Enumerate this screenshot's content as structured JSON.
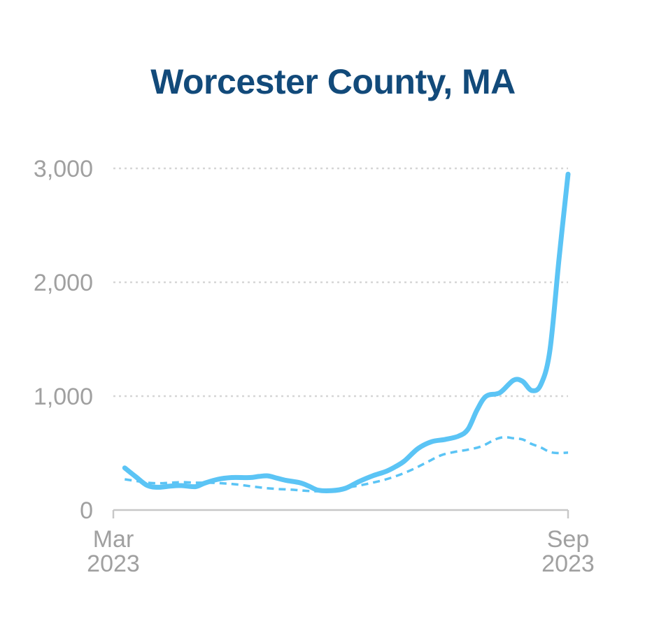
{
  "chart_data": {
    "type": "line",
    "title": "Worcester County, MA",
    "xlabel": "",
    "ylabel": "",
    "x_range": [
      "2023-03",
      "2023-09"
    ],
    "ylim": [
      0,
      3000
    ],
    "grid": true,
    "legend": "none",
    "y_ticks": [
      {
        "value": 0,
        "label": "0"
      },
      {
        "value": 1000,
        "label": "1,000"
      },
      {
        "value": 2000,
        "label": "2,000"
      },
      {
        "value": 3000,
        "label": "3,000"
      }
    ],
    "x_ticks": [
      {
        "x": 0.0,
        "line1": "Mar",
        "line2": "2023"
      },
      {
        "x": 1.0,
        "line1": "Sep",
        "line2": "2023"
      }
    ],
    "colors": {
      "title": "#124a7a",
      "series": "#5bc4f5",
      "grid": "#d6d6d6",
      "axis": "#c8c8c8",
      "tick_text": "#a0a0a0"
    },
    "series": [
      {
        "style": "solid",
        "points": [
          [
            0.025,
            370
          ],
          [
            0.05,
            290
          ],
          [
            0.075,
            215
          ],
          [
            0.1,
            200
          ],
          [
            0.125,
            210
          ],
          [
            0.15,
            215
          ],
          [
            0.18,
            205
          ],
          [
            0.2,
            235
          ],
          [
            0.23,
            270
          ],
          [
            0.26,
            285
          ],
          [
            0.3,
            285
          ],
          [
            0.32,
            295
          ],
          [
            0.34,
            300
          ],
          [
            0.36,
            280
          ],
          [
            0.38,
            260
          ],
          [
            0.41,
            240
          ],
          [
            0.43,
            210
          ],
          [
            0.45,
            175
          ],
          [
            0.48,
            170
          ],
          [
            0.51,
            190
          ],
          [
            0.54,
            250
          ],
          [
            0.57,
            300
          ],
          [
            0.6,
            340
          ],
          [
            0.62,
            380
          ],
          [
            0.64,
            430
          ],
          [
            0.67,
            540
          ],
          [
            0.7,
            600
          ],
          [
            0.73,
            620
          ],
          [
            0.76,
            650
          ],
          [
            0.78,
            710
          ],
          [
            0.8,
            880
          ],
          [
            0.82,
            1000
          ],
          [
            0.85,
            1030
          ],
          [
            0.88,
            1140
          ],
          [
            0.9,
            1130
          ],
          [
            0.92,
            1050
          ],
          [
            0.94,
            1100
          ],
          [
            0.96,
            1400
          ],
          [
            0.98,
            2200
          ],
          [
            1.0,
            2950
          ]
        ]
      },
      {
        "style": "dashed",
        "points": [
          [
            0.025,
            270
          ],
          [
            0.05,
            255
          ],
          [
            0.075,
            240
          ],
          [
            0.1,
            235
          ],
          [
            0.125,
            240
          ],
          [
            0.15,
            245
          ],
          [
            0.18,
            240
          ],
          [
            0.21,
            240
          ],
          [
            0.24,
            235
          ],
          [
            0.27,
            225
          ],
          [
            0.3,
            210
          ],
          [
            0.33,
            195
          ],
          [
            0.36,
            185
          ],
          [
            0.39,
            180
          ],
          [
            0.42,
            170
          ],
          [
            0.45,
            165
          ],
          [
            0.48,
            175
          ],
          [
            0.51,
            195
          ],
          [
            0.54,
            215
          ],
          [
            0.57,
            240
          ],
          [
            0.6,
            270
          ],
          [
            0.63,
            310
          ],
          [
            0.66,
            360
          ],
          [
            0.69,
            420
          ],
          [
            0.72,
            480
          ],
          [
            0.75,
            510
          ],
          [
            0.78,
            530
          ],
          [
            0.81,
            560
          ],
          [
            0.84,
            620
          ],
          [
            0.86,
            640
          ],
          [
            0.88,
            630
          ],
          [
            0.9,
            620
          ],
          [
            0.92,
            580
          ],
          [
            0.94,
            550
          ],
          [
            0.96,
            510
          ],
          [
            0.98,
            500
          ],
          [
            1.0,
            505
          ]
        ]
      }
    ]
  }
}
